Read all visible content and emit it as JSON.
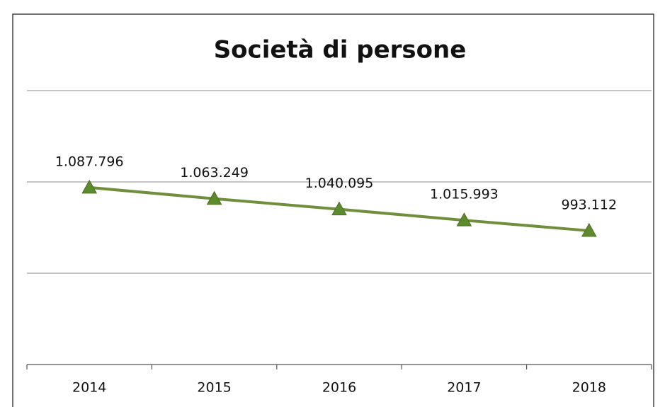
{
  "chart_data": {
    "type": "line",
    "title": "Società di persone",
    "categories": [
      "2014",
      "2015",
      "2016",
      "2017",
      "2018"
    ],
    "series": [
      {
        "name": "Società di persone",
        "color": "#6f8f3c",
        "values": [
          1087796,
          1063249,
          1040095,
          1015993,
          993112
        ],
        "value_labels": [
          "1.087.796",
          "1.063.249",
          "1.040.095",
          "1.015.993",
          "993.112"
        ]
      }
    ],
    "ylim": [
      700000,
      1300000
    ],
    "yticks": [
      700000,
      900000,
      1100000,
      1300000
    ],
    "grid": true
  }
}
